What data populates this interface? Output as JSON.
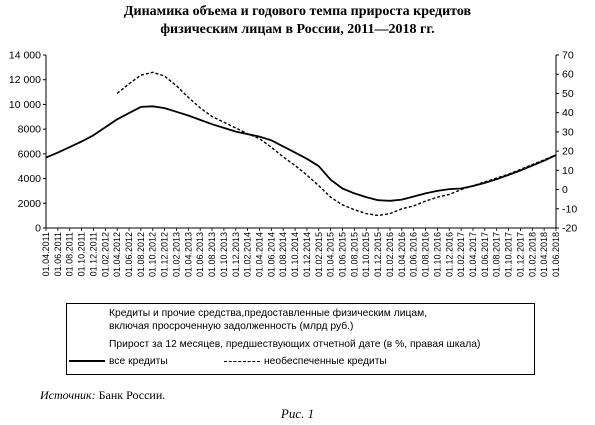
{
  "title": {
    "line1": "Динамика объема и годового темпа прироста кредитов",
    "line2": "физическим лицам в России, 2011—2018 гг."
  },
  "legend": {
    "title_line1": "Кредиты и прочие средства,предоставленные физическим лицам,",
    "title_line2": "включая просроченную задолженность (млрд руб.)",
    "title_line3": "Прирост за 12 месяцев, предшествующих отчетной дате (в %, правая шкала)",
    "all_credits": "все кредиты",
    "unsecured_credits": "необеспеченные кредиты"
  },
  "source": {
    "label": "Источник:",
    "text": "Банк России."
  },
  "caption": "Рис. 1",
  "chart_data": {
    "type": "line",
    "title": "Динамика объема и годового темпа прироста кредитов физическим лицам в России, 2011—2018 гг.",
    "x_dates": [
      "2011-04",
      "2011-06",
      "2011-08",
      "2011-10",
      "2011-12",
      "2012-02",
      "2012-04",
      "2012-06",
      "2012-08",
      "2012-10",
      "2012-12",
      "2013-02",
      "2013-04",
      "2013-06",
      "2013-08",
      "2013-10",
      "2013-12",
      "2014-02",
      "2014-04",
      "2014-06",
      "2014-08",
      "2014-10",
      "2014-12",
      "2015-02",
      "2015-04",
      "2015-06",
      "2015-08",
      "2015-10",
      "2015-12",
      "2016-02",
      "2016-04",
      "2016-06",
      "2016-08",
      "2016-10",
      "2016-12",
      "2017-02",
      "2017-04",
      "2017-06",
      "2017-08",
      "2017-10",
      "2017-12",
      "2018-02",
      "2018-04",
      "2018-06"
    ],
    "x_tick_labels": [
      "01.04.2011",
      "01.06.2011",
      "01.08.2011",
      "01.10.2011",
      "01.12.2011",
      "01.02.2012",
      "01.04.2012",
      "01.06.2012",
      "01.08.2012",
      "01.10.2012",
      "01.12.2012",
      "01.02.2013",
      "01.04.2013",
      "01.06.2013",
      "01.08.2013",
      "01.10.2013",
      "01.12.2013",
      "01.02.2014",
      "01.04.2014",
      "01.06.2014",
      "01.08.2014",
      "01.10.2014",
      "01.12.2014",
      "01.02.2015",
      "01.04.2015",
      "01.06.2015",
      "01.08.2015",
      "01.10.2015",
      "01.12.2015",
      "01.02.2016",
      "01.04.2016",
      "01.06.2016",
      "01.08.2016",
      "01.10.2016",
      "01.12.2016",
      "01.02.2017",
      "01.04.2017",
      "01.06.2017",
      "01.08.2017",
      "01.10.2017",
      "01.12.2017",
      "01.02.2018",
      "01.04.2018",
      "01.06.2018"
    ],
    "left_axis": {
      "min": 0,
      "max": 14000,
      "step": 2000,
      "tick_labels": [
        "0",
        "2000",
        "4000",
        "6000",
        "8000",
        "10 000",
        "12 000",
        "14 000"
      ]
    },
    "right_axis": {
      "min": -20,
      "max": 70,
      "step": 10,
      "tick_labels": [
        "-20",
        "-10",
        "0",
        "10",
        "20",
        "30",
        "40",
        "50",
        "60",
        "70"
      ]
    },
    "series": [
      {
        "name": "все кредиты",
        "axis": "left",
        "style": "solid",
        "values": [
          5700,
          6100,
          6550,
          7000,
          7500,
          8150,
          8800,
          9300,
          9800,
          9850,
          9700,
          9400,
          9100,
          8750,
          8400,
          8100,
          7800,
          7600,
          7400,
          7100,
          6600,
          6100,
          5600,
          5000,
          3900,
          3200,
          2800,
          2500,
          2250,
          2200,
          2300,
          2550,
          2800,
          3000,
          3150,
          3200,
          3400,
          3650,
          3950,
          4300,
          4650,
          5050,
          5450,
          5900
        ]
      },
      {
        "name": "необеспеченные кредиты",
        "axis": "right",
        "style": "dashed",
        "values": [
          null,
          null,
          null,
          null,
          null,
          null,
          50,
          55,
          59.5,
          61,
          59,
          54,
          48,
          42.5,
          38,
          35,
          32,
          29,
          26.5,
          22,
          17,
          12.5,
          7.5,
          2,
          -4,
          -8,
          -10.5,
          -12.5,
          -13.5,
          -12.5,
          -10,
          -8.5,
          -6,
          -4,
          -2.5,
          0,
          2,
          4,
          6,
          8,
          10.5,
          13,
          15.5,
          18
        ]
      }
    ],
    "legend_position": "bottom",
    "grid": false
  }
}
